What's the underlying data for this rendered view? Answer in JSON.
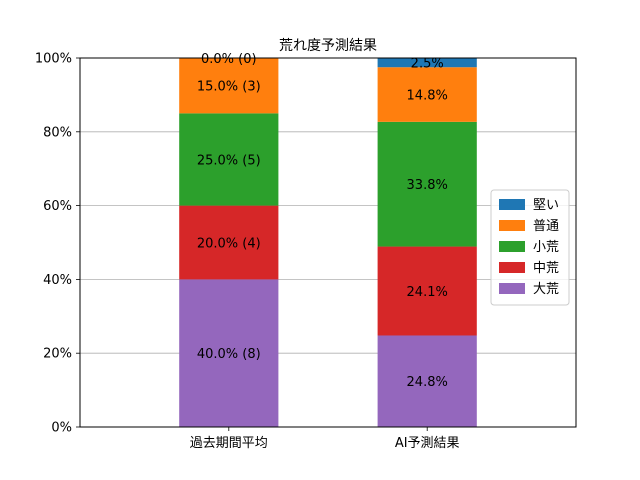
{
  "chart_data": {
    "type": "bar",
    "stacked": true,
    "title": "荒れ度予測結果",
    "xlabel": "",
    "ylabel": "",
    "ylim": [
      0,
      100
    ],
    "y_ticks": [
      "0%",
      "20%",
      "40%",
      "60%",
      "80%",
      "100%"
    ],
    "grid": "y",
    "legend_position": "right",
    "categories": [
      "過去期間平均",
      "AI予測結果"
    ],
    "series": [
      {
        "name": "大荒",
        "color": "#9467bd",
        "values": [
          40.0,
          24.8
        ],
        "labels": [
          "40.0% (8)",
          "24.8%"
        ]
      },
      {
        "name": "中荒",
        "color": "#d62728",
        "values": [
          20.0,
          24.1
        ],
        "labels": [
          "20.0% (4)",
          "24.1%"
        ]
      },
      {
        "name": "小荒",
        "color": "#2ca02c",
        "values": [
          25.0,
          33.8
        ],
        "labels": [
          "25.0% (5)",
          "33.8%"
        ]
      },
      {
        "name": "普通",
        "color": "#ff7f0e",
        "values": [
          15.0,
          14.8
        ],
        "labels": [
          "15.0% (3)",
          "14.8%"
        ]
      },
      {
        "name": "堅い",
        "color": "#1f77b4",
        "values": [
          0.0,
          2.5
        ],
        "labels": [
          "0.0% (0)",
          "2.5%"
        ]
      }
    ],
    "legend_order": [
      "堅い",
      "普通",
      "小荒",
      "中荒",
      "大荒"
    ]
  }
}
